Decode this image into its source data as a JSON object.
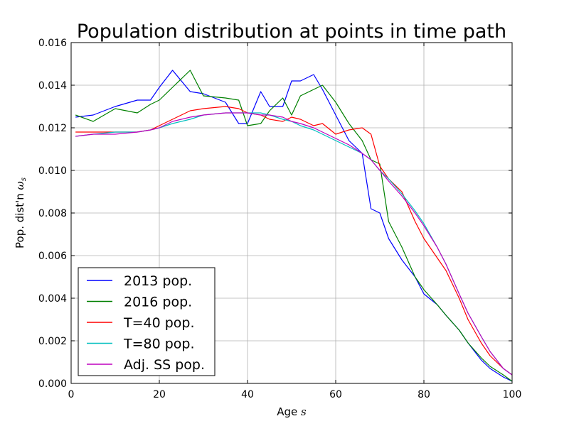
{
  "chart_data": {
    "type": "line",
    "title": "Population distribution at points in time path",
    "xlabel": "Age $s$",
    "ylabel": "Pop. dist'n $\\omega_s$",
    "xlim": [
      0,
      100
    ],
    "ylim": [
      0,
      0.016
    ],
    "grid": true,
    "legend_position": "lower-left",
    "x_ticks": [
      "0",
      "20",
      "40",
      "60",
      "80",
      "100"
    ],
    "y_ticks": [
      "0.000",
      "0.002",
      "0.004",
      "0.006",
      "0.008",
      "0.010",
      "0.012",
      "0.014",
      "0.016"
    ],
    "x": [
      1,
      5,
      10,
      15,
      18,
      20,
      23,
      27,
      30,
      35,
      38,
      40,
      43,
      45,
      48,
      50,
      52,
      55,
      57,
      60,
      63,
      66,
      68,
      70,
      72,
      75,
      78,
      80,
      83,
      85,
      88,
      90,
      93,
      95,
      98,
      100
    ],
    "series": [
      {
        "name": "2013 pop.",
        "color": "#0000ff",
        "values": [
          0.0125,
          0.0126,
          0.013,
          0.0133,
          0.0133,
          0.0139,
          0.0147,
          0.0137,
          0.0136,
          0.0132,
          0.0122,
          0.0122,
          0.0137,
          0.013,
          0.013,
          0.0142,
          0.0142,
          0.0145,
          0.0138,
          0.0126,
          0.0114,
          0.0108,
          0.0082,
          0.008,
          0.0068,
          0.0058,
          0.005,
          0.0042,
          0.0037,
          0.0032,
          0.0025,
          0.0019,
          0.0011,
          0.0007,
          0.0003,
          0.0001
        ]
      },
      {
        "name": "2016 pop.",
        "color": "#008000",
        "values": [
          0.0126,
          0.0123,
          0.0129,
          0.0127,
          0.0131,
          0.0133,
          0.0139,
          0.0147,
          0.0135,
          0.0134,
          0.0133,
          0.0121,
          0.0122,
          0.0128,
          0.0134,
          0.0126,
          0.0135,
          0.0138,
          0.014,
          0.0132,
          0.0122,
          0.0114,
          0.0105,
          0.0103,
          0.0076,
          0.0064,
          0.005,
          0.0044,
          0.0037,
          0.0032,
          0.0025,
          0.0019,
          0.0012,
          0.0008,
          0.0004,
          0.0001
        ]
      },
      {
        "name": "T=40 pop.",
        "color": "#ff0000",
        "values": [
          0.0118,
          0.0118,
          0.0118,
          0.0118,
          0.0119,
          0.0121,
          0.0124,
          0.0128,
          0.0129,
          0.013,
          0.0129,
          0.0127,
          0.0126,
          0.0124,
          0.0123,
          0.0125,
          0.0124,
          0.0121,
          0.0122,
          0.0117,
          0.0119,
          0.012,
          0.0117,
          0.0102,
          0.0096,
          0.009,
          0.0076,
          0.0068,
          0.0059,
          0.0053,
          0.004,
          0.003,
          0.0019,
          0.0013,
          0.0007,
          0.0004
        ]
      },
      {
        "name": "T=80 pop.",
        "color": "#00bfbf",
        "values": [
          0.0116,
          0.0117,
          0.0118,
          0.0118,
          0.0119,
          0.012,
          0.0122,
          0.0124,
          0.0126,
          0.0127,
          0.0127,
          0.0127,
          0.0127,
          0.0126,
          0.0124,
          0.0123,
          0.0121,
          0.0119,
          0.0117,
          0.0114,
          0.0111,
          0.0108,
          0.0105,
          0.01,
          0.0096,
          0.0089,
          0.0081,
          0.0075,
          0.0064,
          0.0056,
          0.0042,
          0.0033,
          0.0022,
          0.0015,
          0.0007,
          0.0004
        ]
      },
      {
        "name": "Adj. SS pop.",
        "color": "#bf00bf",
        "values": [
          0.0116,
          0.0117,
          0.0117,
          0.0118,
          0.0119,
          0.012,
          0.0123,
          0.0125,
          0.0126,
          0.0127,
          0.0127,
          0.0127,
          0.0126,
          0.0126,
          0.0125,
          0.0123,
          0.0122,
          0.012,
          0.0118,
          0.0115,
          0.0112,
          0.0108,
          0.0105,
          0.01,
          0.0095,
          0.0088,
          0.008,
          0.0074,
          0.0064,
          0.0056,
          0.0042,
          0.0033,
          0.0022,
          0.0015,
          0.0007,
          0.0004
        ]
      }
    ]
  }
}
